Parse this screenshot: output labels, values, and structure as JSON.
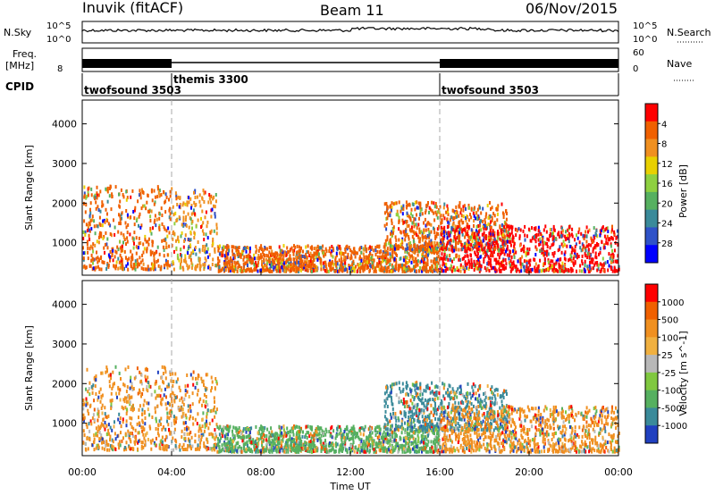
{
  "header": {
    "station": "Inuvik (fitACF)",
    "beam": "Beam 11",
    "date": "06/Nov/2015"
  },
  "strip": {
    "nsky_label": "N.Sky",
    "nsky_ticks": [
      "10^5",
      "10^0"
    ],
    "nsearch_label": "N.Search",
    "nsearch_ticks": [
      "10^5",
      "10^0"
    ],
    "freq_label": "Freq.",
    "freq_unit": "[MHz]",
    "freq_tick": "8",
    "nave_label": "Nave",
    "nave_ticks": [
      "60",
      "0"
    ],
    "cpid_label": "CPID",
    "cpid_segments": [
      {
        "name": "twofsound 3503",
        "start": 0,
        "end": 4
      },
      {
        "name": "themis 3300",
        "start": 4,
        "end": 16
      },
      {
        "name": "twofsound 3503",
        "start": 16,
        "end": 24
      }
    ]
  },
  "x_axis": {
    "label": "Time UT",
    "ticks": [
      "00:00",
      "04:00",
      "08:00",
      "12:00",
      "16:00",
      "20:00",
      "00:00"
    ],
    "range_hours": [
      0,
      24
    ]
  },
  "chart_data": [
    {
      "type": "heatmap",
      "title": "",
      "ylabel": "Slant Range [km]",
      "ylim": [
        180,
        4600
      ],
      "yticks": [
        "1000",
        "2000",
        "3000",
        "4000"
      ],
      "colorbar_label": "Power [dB]",
      "colorbar_ticks": [
        "4",
        "8",
        "12",
        "16",
        "20",
        "24",
        "28"
      ],
      "colorbar_colors": [
        "#0000ff",
        "#2f52c8",
        "#3a8a9a",
        "#56b060",
        "#8ed040",
        "#e8d000",
        "#f09020",
        "#f06000",
        "#ff0000"
      ],
      "regions": [
        {
          "t0": 0.0,
          "t1": 4.0,
          "r0": 300,
          "r1": 2400,
          "dominant": "#f06000"
        },
        {
          "t0": 4.0,
          "t1": 6.0,
          "r0": 300,
          "r1": 2300,
          "dominant": "#f09020"
        },
        {
          "t0": 6.0,
          "t1": 16.0,
          "r0": 250,
          "r1": 900,
          "dominant": "#f06000"
        },
        {
          "t0": 13.5,
          "t1": 19.0,
          "r0": 800,
          "r1": 2000,
          "dominant": "#f06000"
        },
        {
          "t0": 16.0,
          "t1": 24.0,
          "r0": 250,
          "r1": 1400,
          "dominant": "#ff0000"
        }
      ]
    },
    {
      "type": "heatmap",
      "title": "",
      "ylabel": "Slant Range [km]",
      "ylim": [
        180,
        4600
      ],
      "yticks": [
        "1000",
        "2000",
        "3000",
        "4000"
      ],
      "colorbar_label": "Velocity [m s^-1]",
      "colorbar_ticks": [
        "1000",
        "500",
        "100",
        "25",
        "-25",
        "-100",
        "-500",
        "-1000"
      ],
      "colorbar_colors": [
        "#2040c0",
        "#3a8a9a",
        "#56b060",
        "#80c840",
        "#b8b8b8",
        "#f0b040",
        "#f09020",
        "#f06000",
        "#ff0000"
      ],
      "regions": [
        {
          "t0": 0.0,
          "t1": 4.0,
          "r0": 300,
          "r1": 2400,
          "dominant": "#f09020"
        },
        {
          "t0": 4.0,
          "t1": 6.0,
          "r0": 300,
          "r1": 2300,
          "dominant": "#f09020"
        },
        {
          "t0": 6.0,
          "t1": 16.0,
          "r0": 250,
          "r1": 900,
          "dominant": "#56b060"
        },
        {
          "t0": 13.5,
          "t1": 19.0,
          "r0": 800,
          "r1": 2000,
          "dominant": "#3a8a9a"
        },
        {
          "t0": 16.0,
          "t1": 24.0,
          "r0": 250,
          "r1": 1400,
          "dominant": "#f09020"
        }
      ]
    }
  ]
}
